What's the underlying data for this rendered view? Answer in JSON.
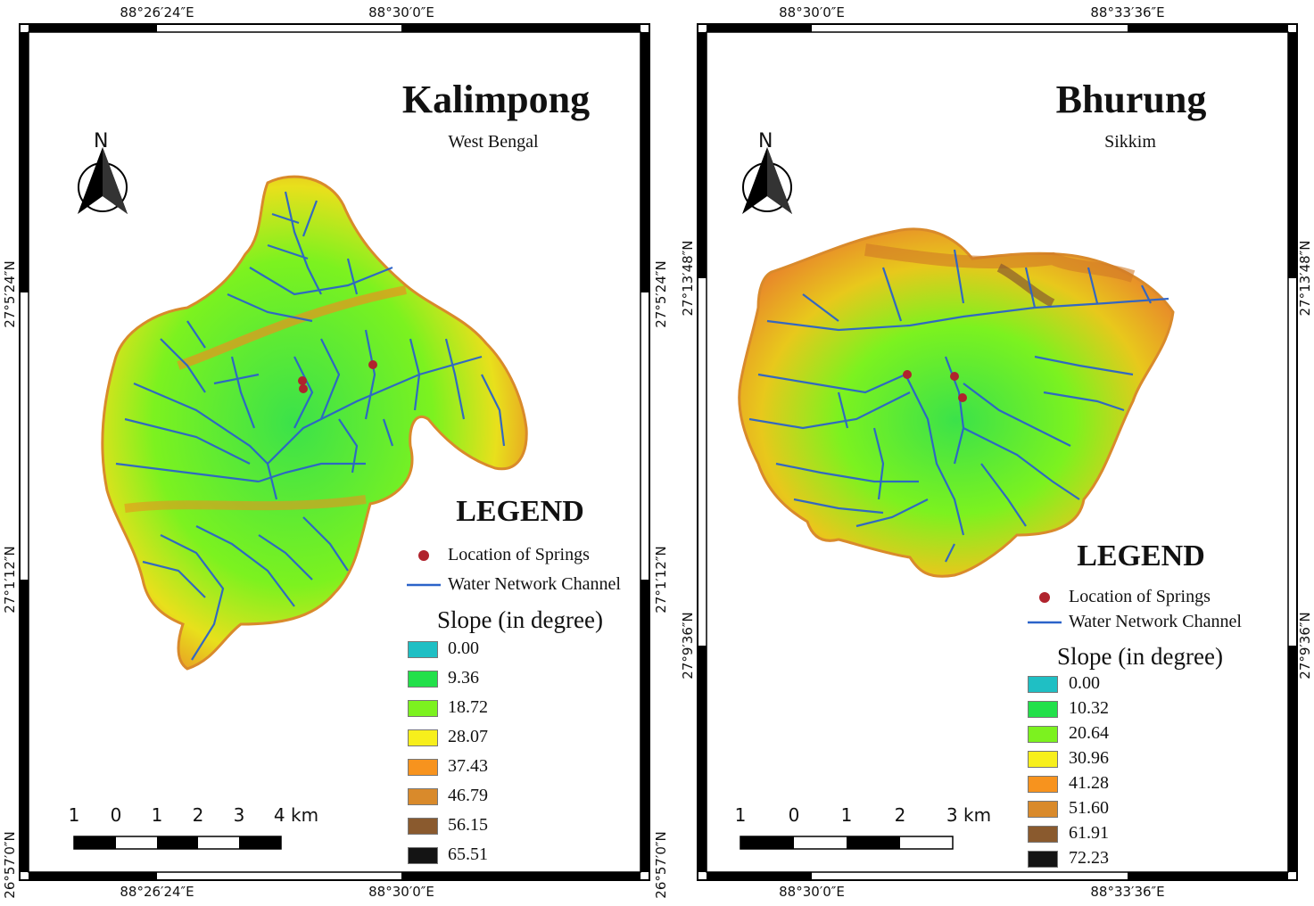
{
  "maps": [
    {
      "id": "kalimpong",
      "title": "Kalimpong",
      "subtitle": "West Bengal",
      "north_label": "N",
      "top_coords": [
        "88°26′24″E",
        "88°30′0″E"
      ],
      "bottom_coords": [
        "88°26′24″E",
        "88°30′0″E"
      ],
      "left_coords": [
        "27°5′24″N",
        "27°1′12″N",
        "26°57′0″N"
      ],
      "right_coords": [
        "27°5′24″N",
        "27°1′12″N",
        "26°57′0″N"
      ],
      "legend": {
        "title": "LEGEND",
        "springs_label": "Location of Springs",
        "channel_label": "Water Network Channel",
        "slope_title": "Slope (in degree)",
        "classes": [
          {
            "label": "0.00",
            "color": "#1fbfc4"
          },
          {
            "label": "9.36",
            "color": "#22e04a"
          },
          {
            "label": "18.72",
            "color": "#7cf21f"
          },
          {
            "label": "28.07",
            "color": "#f7ef1c"
          },
          {
            "label": "37.43",
            "color": "#f7931e"
          },
          {
            "label": "46.79",
            "color": "#d98a2b"
          },
          {
            "label": "56.15",
            "color": "#8a5a2e"
          },
          {
            "label": "65.51",
            "color": "#141414"
          }
        ]
      },
      "scale": {
        "labels": [
          "1",
          "0",
          "1",
          "2",
          "3",
          "4 km"
        ]
      }
    },
    {
      "id": "bhurung",
      "title": "Bhurung",
      "subtitle": "Sikkim",
      "north_label": "N",
      "top_coords": [
        "88°30′0″E",
        "88°33′36″E"
      ],
      "bottom_coords": [
        "88°30′0″E",
        "88°33′36″E"
      ],
      "left_coords": [
        "27°13′48″N",
        "27°9′36″N"
      ],
      "right_coords": [
        "27°13′48″N",
        "27°9′36″N"
      ],
      "legend": {
        "title": "LEGEND",
        "springs_label": "Location of Springs",
        "channel_label": "Water Network Channel",
        "slope_title": "Slope (in degree)",
        "classes": [
          {
            "label": "0.00",
            "color": "#1fbfc4"
          },
          {
            "label": "10.32",
            "color": "#22e04a"
          },
          {
            "label": "20.64",
            "color": "#7cf21f"
          },
          {
            "label": "30.96",
            "color": "#f7ef1c"
          },
          {
            "label": "41.28",
            "color": "#f7931e"
          },
          {
            "label": "51.60",
            "color": "#d98a2b"
          },
          {
            "label": "61.91",
            "color": "#8a5a2e"
          },
          {
            "label": "72.23",
            "color": "#141414"
          }
        ]
      },
      "scale": {
        "labels": [
          "1",
          "0",
          "1",
          "2",
          "3 km"
        ]
      }
    }
  ],
  "colors": {
    "spring": "#b0232d",
    "channel": "#2b63c9",
    "frame": "#000000"
  }
}
